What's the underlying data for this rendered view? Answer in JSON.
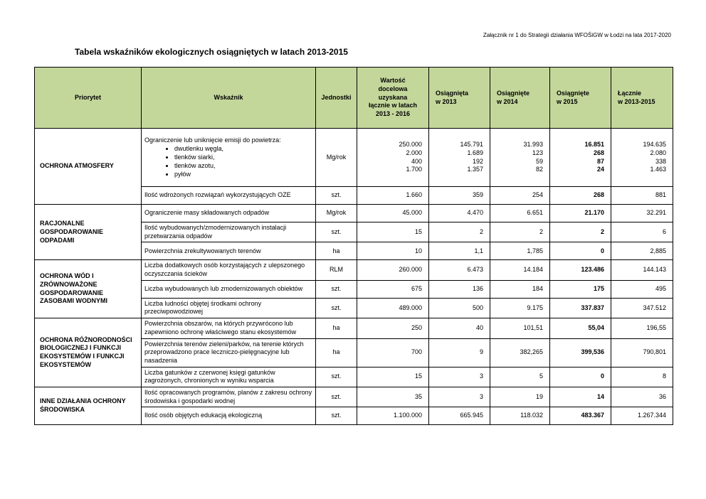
{
  "page": {
    "annotation": "Załącznik  nr 1 do Strategii działania WFOŚiGW w Łodzi na lata 2017-2020",
    "title": "Tabela wskaźników ekologicznych osiągniętych w latach 2013-2015"
  },
  "table": {
    "header_bg": "#c4d79b",
    "headers": [
      "Priorytet",
      "Wskaźnik",
      "Jednostki",
      "Wartość\ndocelowa\nuzyskana\nłącznie w latach\n2013 - 2016",
      "Osiągnięta\nw 2013",
      "Osiągnięte\nw 2014",
      "Osiągnięte\nw 2015",
      "Łącznie\nw 2013-2015"
    ],
    "sections": [
      {
        "priority": "OCHRONA ATMOSFERY",
        "rows": [
          {
            "indicator": "Ograniczenie lub uniknięcie emisji do powietrza:",
            "bullets": [
              "dwutlenku węgla,",
              "tlenków siarki,",
              "tlenków azotu,",
              "pyłów"
            ],
            "unit": "Mg/rok",
            "target": [
              "250.000",
              "2.000",
              "400",
              "1.700"
            ],
            "y2013": [
              "145.791",
              "1.689",
              "192",
              "1.357"
            ],
            "y2014": [
              "31.993",
              "123",
              "59",
              "82"
            ],
            "y2015": [
              "16.851",
              "268",
              "87",
              "24"
            ],
            "total": [
              "194.635",
              "2.080",
              "338",
              "1.463"
            ]
          },
          {
            "indicator": "Ilość wdrożonych rozwiązań wykorzystujących OZE",
            "unit": "szt.",
            "target": "1.660",
            "y2013": "359",
            "y2014": "254",
            "y2015": "268",
            "total": "881"
          }
        ]
      },
      {
        "priority": "RACJONALNE GOSPODAROWANIE ODPADAMI",
        "rows": [
          {
            "indicator": "Ograniczenie masy składowanych odpadów",
            "unit": "Mg/rok",
            "target": "45.000",
            "y2013": "4.470",
            "y2014": "6.651",
            "y2015": "21.170",
            "total": "32.291"
          },
          {
            "indicator": "Ilość wybudowanych/zmodernizowanych instalacji przetwarzania odpadów",
            "unit": "szt.",
            "target": "15",
            "y2013": "2",
            "y2014": "2",
            "y2015": "2",
            "total": "6"
          },
          {
            "indicator": "Powierzchnia zrekultywowanych terenów",
            "unit": "ha",
            "target": "10",
            "y2013": "1,1",
            "y2014": "1,785",
            "y2015": "0",
            "total": "2,885"
          }
        ]
      },
      {
        "priority": "OCHRONA WÓD I ZRÓWNOWAŻONE GOSPODAROWANIE ZASOBAMI WODNYMI",
        "rows": [
          {
            "indicator": "Liczba dodatkowych osób korzystających z ulepszonego oczyszczania ścieków",
            "unit": "RLM",
            "target": "260.000",
            "y2013": "6.473",
            "y2014": "14.184",
            "y2015": "123.486",
            "total": "144.143"
          },
          {
            "indicator": "Liczba wybudowanych lub zmodernizowanych obiektów",
            "unit": "szt.",
            "target": "675",
            "y2013": "136",
            "y2014": "184",
            "y2015": "175",
            "total": "495"
          },
          {
            "indicator": "Liczba ludności objętej środkami ochrony przeciwpowodziowej",
            "unit": "szt.",
            "target": "489.000",
            "y2013": "500",
            "y2014": "9.175",
            "y2015": "337.837",
            "total": "347.512"
          }
        ]
      },
      {
        "priority": "OCHRONA RÓŻNORODNOŚCI BIOLOGICZNEJ I FUNKCJI EKOSYSTEMÓW I FUNKCJI EKOSYSTEMÓW",
        "rows": [
          {
            "indicator": "Powierzchnia obszarów, na których przywrócono lub zapewniono ochronę właściwego stanu ekosystemów",
            "unit": "ha",
            "target": "250",
            "y2013": "40",
            "y2014": "101,51",
            "y2015": "55,04",
            "total": "196,55"
          },
          {
            "indicator": "Powierzchnia terenów zieleni/parków, na terenie których przeprowadzono prace leczniczo-pielęgnacyjne lub nasadzenia",
            "unit": "ha",
            "target": "700",
            "y2013": "9",
            "y2014": "382,265",
            "y2015": "399,536",
            "total": "790,801"
          },
          {
            "indicator": "Liczba gatunków z czerwonej księgi gatunków zagrożonych, chronionych w wyniku wsparcia",
            "unit": "szt.",
            "target": "15",
            "y2013": "3",
            "y2014": "5",
            "y2015": "0",
            "total": "8"
          }
        ]
      },
      {
        "priority": "INNE DZIAŁANIA OCHRONY ŚRODOWISKA",
        "rows": [
          {
            "indicator": "Ilość opracowanych programów, planów z zakresu ochrony środowiska i gospodarki wodnej",
            "unit": "szt.",
            "target": "35",
            "y2013": "3",
            "y2014": "19",
            "y2015": "14",
            "total": "36"
          },
          {
            "indicator": "Ilość osób objętych edukacją ekologiczną",
            "unit": "szt.",
            "target": "1.100.000",
            "y2013": "665.945",
            "y2014": "118.032",
            "y2015": "483.367",
            "total": "1.267.344"
          }
        ]
      }
    ]
  }
}
